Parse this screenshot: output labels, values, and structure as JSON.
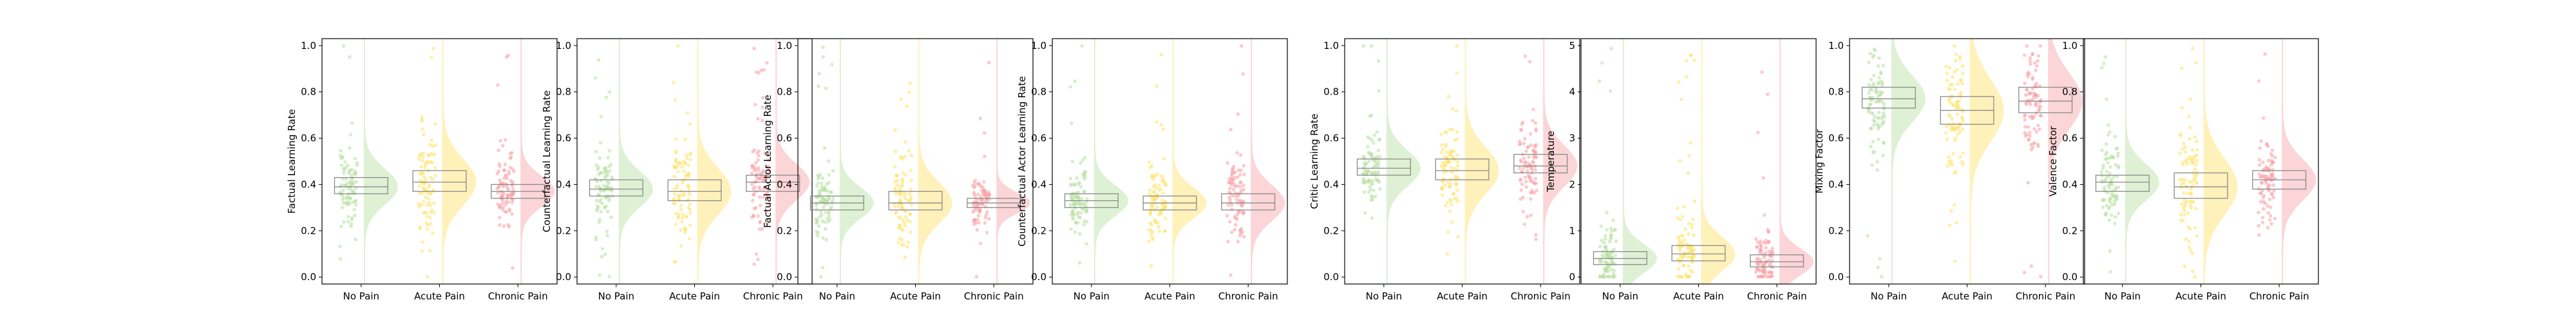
{
  "figure": {
    "background": "#ffffff",
    "group_colors": [
      "#b6e0a0",
      "#ffe166",
      "#f7a1a6"
    ]
  },
  "chart_data": [
    {
      "type": "raincloud",
      "ylabel": "Factual Learning Rate",
      "categories": [
        "No Pain",
        "Acute Pain",
        "Chronic Pain"
      ],
      "ylim": [
        -0.03,
        1.03
      ],
      "yticks": [
        "0.0",
        "0.2",
        "0.4",
        "0.6",
        "0.8",
        "1.0"
      ],
      "ytick_values": [
        0,
        0.2,
        0.4,
        0.6,
        0.8,
        1.0
      ],
      "grid": false,
      "boxes": [
        {
          "q1": 0.36,
          "median": 0.39,
          "q3": 0.43
        },
        {
          "q1": 0.37,
          "median": 0.41,
          "q3": 0.46
        },
        {
          "q1": 0.34,
          "median": 0.37,
          "q3": 0.4
        }
      ]
    },
    {
      "type": "raincloud",
      "ylabel": "Counterfactual Learning Rate",
      "categories": [
        "No Pain",
        "Acute Pain",
        "Chronic Pain"
      ],
      "ylim": [
        -0.03,
        1.03
      ],
      "yticks": [
        "0.0",
        "0.2",
        "0.4",
        "0.6",
        "0.8",
        "1.0"
      ],
      "ytick_values": [
        0,
        0.2,
        0.4,
        0.6,
        0.8,
        1.0
      ],
      "grid": false,
      "boxes": [
        {
          "q1": 0.35,
          "median": 0.38,
          "q3": 0.42
        },
        {
          "q1": 0.33,
          "median": 0.37,
          "q3": 0.42
        },
        {
          "q1": 0.37,
          "median": 0.41,
          "q3": 0.44
        }
      ]
    },
    {
      "type": "raincloud",
      "ylabel": "Factual Actor Learning Rate",
      "categories": [
        "No Pain",
        "Acute Pain",
        "Chronic Pain"
      ],
      "ylim": [
        -0.03,
        1.03
      ],
      "yticks": [
        "0.0",
        "0.2",
        "0.4",
        "0.6",
        "0.8",
        "1.0"
      ],
      "ytick_values": [
        0,
        0.2,
        0.4,
        0.6,
        0.8,
        1.0
      ],
      "grid": false,
      "boxes": [
        {
          "q1": 0.29,
          "median": 0.32,
          "q3": 0.35
        },
        {
          "q1": 0.29,
          "median": 0.32,
          "q3": 0.37
        },
        {
          "q1": 0.3,
          "median": 0.32,
          "q3": 0.34
        }
      ]
    },
    {
      "type": "raincloud",
      "ylabel": "Counterfactual Actor Learning Rate",
      "categories": [
        "No Pain",
        "Acute Pain",
        "Chronic Pain"
      ],
      "ylim": [
        -0.03,
        1.03
      ],
      "yticks": [
        "0.0",
        "0.2",
        "0.4",
        "0.6",
        "0.8",
        "1.0"
      ],
      "ytick_values": [
        0,
        0.2,
        0.4,
        0.6,
        0.8,
        1.0
      ],
      "grid": false,
      "boxes": [
        {
          "q1": 0.3,
          "median": 0.33,
          "q3": 0.36
        },
        {
          "q1": 0.29,
          "median": 0.32,
          "q3": 0.35
        },
        {
          "q1": 0.29,
          "median": 0.32,
          "q3": 0.36
        }
      ]
    },
    {
      "type": "raincloud",
      "ylabel": "Critic Learning Rate",
      "categories": [
        "No Pain",
        "Acute Pain",
        "Chronic Pain"
      ],
      "ylim": [
        -0.03,
        1.03
      ],
      "yticks": [
        "0.0",
        "0.2",
        "0.4",
        "0.6",
        "0.8",
        "1.0"
      ],
      "ytick_values": [
        0,
        0.2,
        0.4,
        0.6,
        0.8,
        1.0
      ],
      "grid": false,
      "boxes": [
        {
          "q1": 0.44,
          "median": 0.47,
          "q3": 0.51
        },
        {
          "q1": 0.42,
          "median": 0.46,
          "q3": 0.51
        },
        {
          "q1": 0.45,
          "median": 0.48,
          "q3": 0.53
        }
      ]
    },
    {
      "type": "raincloud",
      "ylabel": "Temperature",
      "categories": [
        "No Pain",
        "Acute Pain",
        "Chronic Pain"
      ],
      "ylim": [
        -0.15,
        5.15
      ],
      "yticks": [
        "0",
        "1",
        "2",
        "3",
        "4",
        "5"
      ],
      "ytick_values": [
        0,
        1,
        2,
        3,
        4,
        5
      ],
      "grid": false,
      "boxes": [
        {
          "q1": 0.27,
          "median": 0.4,
          "q3": 0.55
        },
        {
          "q1": 0.35,
          "median": 0.5,
          "q3": 0.68
        },
        {
          "q1": 0.22,
          "median": 0.33,
          "q3": 0.48
        }
      ]
    },
    {
      "type": "raincloud",
      "ylabel": "Mixing Factor",
      "categories": [
        "No Pain",
        "Acute Pain",
        "Chronic Pain"
      ],
      "ylim": [
        -0.03,
        1.03
      ],
      "yticks": [
        "0.0",
        "0.2",
        "0.4",
        "0.6",
        "0.8",
        "1.0"
      ],
      "ytick_values": [
        0,
        0.2,
        0.4,
        0.6,
        0.8,
        1.0
      ],
      "grid": false,
      "boxes": [
        {
          "q1": 0.73,
          "median": 0.77,
          "q3": 0.82
        },
        {
          "q1": 0.66,
          "median": 0.72,
          "q3": 0.78
        },
        {
          "q1": 0.71,
          "median": 0.76,
          "q3": 0.82
        }
      ]
    },
    {
      "type": "raincloud",
      "ylabel": "Valence Factor",
      "categories": [
        "No Pain",
        "Acute Pain",
        "Chronic Pain"
      ],
      "ylim": [
        -0.03,
        1.03
      ],
      "yticks": [
        "0.0",
        "0.2",
        "0.4",
        "0.6",
        "0.8",
        "1.0"
      ],
      "ytick_values": [
        0,
        0.2,
        0.4,
        0.6,
        0.8,
        1.0
      ],
      "grid": false,
      "boxes": [
        {
          "q1": 0.37,
          "median": 0.41,
          "q3": 0.44
        },
        {
          "q1": 0.34,
          "median": 0.39,
          "q3": 0.45
        },
        {
          "q1": 0.38,
          "median": 0.42,
          "q3": 0.46
        }
      ]
    }
  ]
}
